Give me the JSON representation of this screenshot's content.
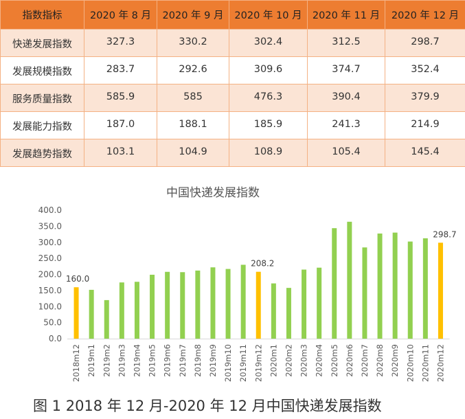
{
  "table": {
    "headers": [
      "指数指标",
      "2020 年 8 月",
      "2020 年 9 月",
      "2020 年 10 月",
      "2020 年 11 月",
      "2020 年 12 月"
    ],
    "rows": [
      [
        "快递发展指数",
        "327.3",
        "330.2",
        "302.4",
        "312.5",
        "298.7"
      ],
      [
        "发展规模指数",
        "283.7",
        "292.6",
        "309.6",
        "374.7",
        "352.4"
      ],
      [
        "服务质量指数",
        "585.9",
        "585",
        "476.3",
        "390.4",
        "379.9"
      ],
      [
        "发展能力指数",
        "187.0",
        "188.1",
        "185.9",
        "241.3",
        "214.9"
      ],
      [
        "发展趋势指数",
        "103.1",
        "104.9",
        "108.9",
        "105.4",
        "145.4"
      ]
    ]
  },
  "chart_data": {
    "type": "bar",
    "title": "中国快递发展指数",
    "categories": [
      "2018m12",
      "2019m1",
      "2019m2",
      "2019m3",
      "2019m4",
      "2019m5",
      "2019m6",
      "2019m7",
      "2019m8",
      "2019m9",
      "2019m10",
      "2019m11",
      "2019m12",
      "2020m1",
      "2020m2",
      "2020m3",
      "2020m4",
      "2020m5",
      "2020m6",
      "2020m7",
      "2020m8",
      "2020m9",
      "2020m10",
      "2020m11",
      "2020m12"
    ],
    "values": [
      160.0,
      152,
      120,
      175,
      177,
      199,
      208,
      207,
      212,
      222,
      217,
      230,
      208.2,
      172,
      158,
      215,
      221,
      344,
      364,
      284,
      327.3,
      330.2,
      302.4,
      312.5,
      298.7
    ],
    "highlighted": [
      "2018m12",
      "2019m12",
      "2020m12"
    ],
    "data_labels": {
      "2018m12": "160.0",
      "2019m12": "208.2",
      "2020m12": "298.7"
    },
    "yticks": [
      "0.0",
      "50.0",
      "100.0",
      "150.0",
      "200.0",
      "250.0",
      "300.0",
      "350.0",
      "400.0"
    ],
    "ylim": [
      0,
      400
    ],
    "grid": false,
    "colors": {
      "bar": "#92d050",
      "highlight": "#ffc000"
    }
  },
  "caption": "图 1 2018 年 12 月-2020 年 12 月中国快递发展指数"
}
